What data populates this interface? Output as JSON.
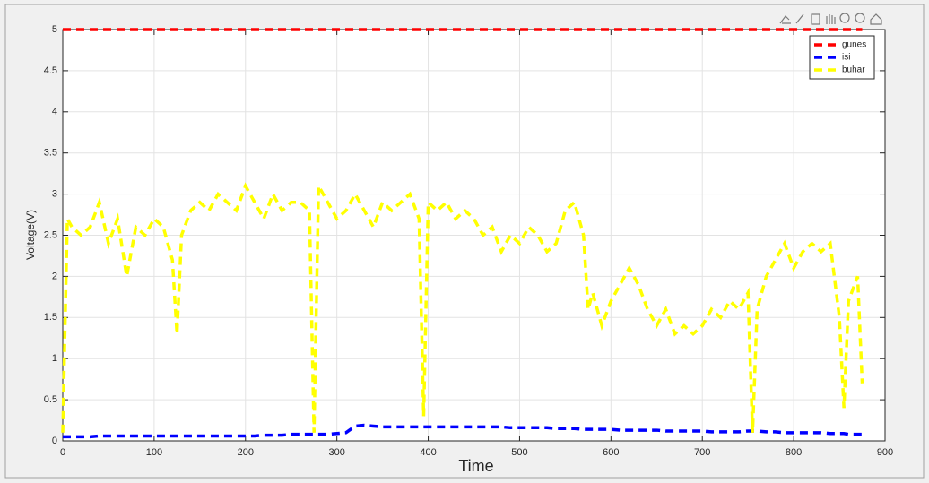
{
  "chart_data": {
    "type": "line",
    "xlabel": "Time",
    "ylabel": "Voltage(V)",
    "x": [
      0,
      5,
      10,
      20,
      30,
      40,
      50,
      60,
      70,
      80,
      90,
      100,
      110,
      120,
      125,
      130,
      140,
      150,
      160,
      170,
      180,
      190,
      200,
      210,
      220,
      230,
      240,
      250,
      260,
      270,
      275,
      280,
      290,
      300,
      310,
      320,
      330,
      340,
      350,
      360,
      370,
      380,
      390,
      395,
      400,
      410,
      420,
      430,
      440,
      450,
      460,
      470,
      480,
      490,
      500,
      510,
      520,
      530,
      540,
      550,
      560,
      570,
      575,
      580,
      590,
      600,
      610,
      620,
      630,
      640,
      650,
      660,
      670,
      680,
      690,
      700,
      710,
      720,
      730,
      740,
      750,
      755,
      760,
      770,
      780,
      790,
      800,
      810,
      820,
      830,
      840,
      850,
      855,
      860,
      870,
      875
    ],
    "series": [
      {
        "name": "gunes",
        "color": "#ff0000",
        "values": [
          5,
          5,
          5,
          5,
          5,
          5,
          5,
          5,
          5,
          5,
          5,
          5,
          5,
          5,
          5,
          5,
          5,
          5,
          5,
          5,
          5,
          5,
          5,
          5,
          5,
          5,
          5,
          5,
          5,
          5,
          5,
          5,
          5,
          5,
          5,
          5,
          5,
          5,
          5,
          5,
          5,
          5,
          5,
          5,
          5,
          5,
          5,
          5,
          5,
          5,
          5,
          5,
          5,
          5,
          5,
          5,
          5,
          5,
          5,
          5,
          5,
          5,
          5,
          5,
          5,
          5,
          5,
          5,
          5,
          5,
          5,
          5,
          5,
          5,
          5,
          5,
          5,
          5,
          5,
          5,
          5,
          5,
          5,
          5,
          5,
          5,
          5,
          5,
          5,
          5,
          5,
          5,
          5,
          5,
          5,
          5
        ]
      },
      {
        "name": "isi",
        "color": "#0000ff",
        "values": [
          0.05,
          0.05,
          0.05,
          0.05,
          0.05,
          0.06,
          0.06,
          0.06,
          0.06,
          0.06,
          0.06,
          0.06,
          0.06,
          0.06,
          0.06,
          0.06,
          0.06,
          0.06,
          0.06,
          0.06,
          0.06,
          0.06,
          0.06,
          0.06,
          0.07,
          0.07,
          0.07,
          0.08,
          0.08,
          0.08,
          0.08,
          0.08,
          0.08,
          0.09,
          0.1,
          0.18,
          0.19,
          0.18,
          0.17,
          0.17,
          0.17,
          0.17,
          0.17,
          0.17,
          0.17,
          0.17,
          0.17,
          0.17,
          0.17,
          0.17,
          0.17,
          0.17,
          0.17,
          0.16,
          0.16,
          0.16,
          0.16,
          0.16,
          0.15,
          0.15,
          0.15,
          0.14,
          0.14,
          0.14,
          0.14,
          0.14,
          0.13,
          0.13,
          0.13,
          0.13,
          0.13,
          0.12,
          0.12,
          0.12,
          0.12,
          0.12,
          0.11,
          0.11,
          0.11,
          0.11,
          0.12,
          0.12,
          0.12,
          0.11,
          0.11,
          0.1,
          0.1,
          0.1,
          0.1,
          0.1,
          0.09,
          0.09,
          0.09,
          0.08,
          0.08,
          0.08
        ]
      },
      {
        "name": "buhar",
        "color": "#ffff00",
        "values": [
          0.1,
          2.7,
          2.6,
          2.5,
          2.6,
          2.9,
          2.4,
          2.7,
          2.0,
          2.6,
          2.5,
          2.7,
          2.6,
          2.2,
          1.3,
          2.5,
          2.8,
          2.9,
          2.8,
          3.0,
          2.9,
          2.8,
          3.1,
          2.9,
          2.7,
          3.0,
          2.8,
          2.9,
          2.9,
          2.8,
          0.1,
          3.1,
          2.9,
          2.7,
          2.8,
          3.0,
          2.8,
          2.6,
          2.9,
          2.8,
          2.9,
          3.0,
          2.7,
          0.3,
          2.9,
          2.8,
          2.9,
          2.7,
          2.8,
          2.7,
          2.5,
          2.6,
          2.3,
          2.5,
          2.4,
          2.6,
          2.5,
          2.3,
          2.4,
          2.8,
          2.9,
          2.5,
          1.6,
          1.8,
          1.4,
          1.7,
          1.9,
          2.1,
          1.9,
          1.6,
          1.4,
          1.6,
          1.3,
          1.4,
          1.3,
          1.4,
          1.6,
          1.5,
          1.7,
          1.6,
          1.8,
          0.1,
          1.6,
          2.0,
          2.2,
          2.4,
          2.1,
          2.3,
          2.4,
          2.3,
          2.4,
          1.5,
          0.4,
          1.7,
          2.0,
          0.7
        ]
      }
    ],
    "xlim": [
      0,
      900
    ],
    "xticks": [
      0,
      100,
      200,
      300,
      400,
      500,
      600,
      700,
      800,
      900
    ],
    "ylim": [
      0,
      5
    ],
    "yticks": [
      0,
      0.5,
      1,
      1.5,
      2,
      2.5,
      3,
      3.5,
      4,
      4.5,
      5
    ],
    "grid": true,
    "legend": "northeast"
  }
}
